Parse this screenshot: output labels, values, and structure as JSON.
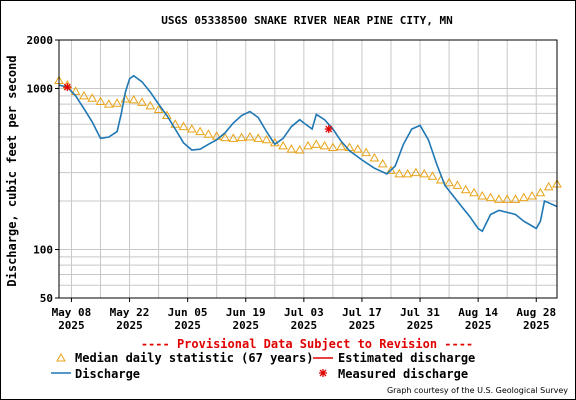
{
  "chart_data": {
    "type": "line",
    "title": "USGS 05338500 SNAKE RIVER NEAR PINE CITY, MN",
    "ylabel": "Discharge, cubic feet per second",
    "xlabel": "",
    "yscale": "log",
    "ylim": [
      50,
      2000
    ],
    "y_ticks": [
      {
        "value": 2000,
        "label": "2000"
      },
      {
        "value": 1000,
        "label": "1000"
      },
      {
        "value": 100,
        "label": "100"
      },
      {
        "value": 50,
        "label": "50"
      }
    ],
    "x_range": [
      "2025-05-05",
      "2025-09-02"
    ],
    "x_ticks": [
      {
        "date": "2025-05-08",
        "line1": "May 08",
        "line2": "2025"
      },
      {
        "date": "2025-05-22",
        "line1": "May 22",
        "line2": "2025"
      },
      {
        "date": "2025-06-05",
        "line1": "Jun 05",
        "line2": "2025"
      },
      {
        "date": "2025-06-19",
        "line1": "Jun 19",
        "line2": "2025"
      },
      {
        "date": "2025-07-03",
        "line1": "Jul 03",
        "line2": "2025"
      },
      {
        "date": "2025-07-17",
        "line1": "Jul 17",
        "line2": "2025"
      },
      {
        "date": "2025-07-31",
        "line1": "Jul 31",
        "line2": "2025"
      },
      {
        "date": "2025-08-14",
        "line1": "Aug 14",
        "line2": "2025"
      },
      {
        "date": "2025-08-28",
        "line1": "Aug 28",
        "line2": "2025"
      }
    ],
    "grid": true,
    "series": [
      {
        "name": "Discharge",
        "color": "#1f77b4",
        "style": "line",
        "points": [
          [
            "2025-05-05",
            1050
          ],
          [
            "2025-05-07",
            1020
          ],
          [
            "2025-05-09",
            900
          ],
          [
            "2025-05-11",
            750
          ],
          [
            "2025-05-13",
            620
          ],
          [
            "2025-05-15",
            490
          ],
          [
            "2025-05-17",
            500
          ],
          [
            "2025-05-19",
            540
          ],
          [
            "2025-05-20",
            700
          ],
          [
            "2025-05-21",
            950
          ],
          [
            "2025-05-22",
            1150
          ],
          [
            "2025-05-23",
            1200
          ],
          [
            "2025-05-25",
            1100
          ],
          [
            "2025-05-27",
            950
          ],
          [
            "2025-05-29",
            800
          ],
          [
            "2025-05-31",
            680
          ],
          [
            "2025-06-02",
            560
          ],
          [
            "2025-06-04",
            460
          ],
          [
            "2025-06-06",
            415
          ],
          [
            "2025-06-08",
            420
          ],
          [
            "2025-06-10",
            450
          ],
          [
            "2025-06-12",
            480
          ],
          [
            "2025-06-14",
            530
          ],
          [
            "2025-06-16",
            610
          ],
          [
            "2025-06-18",
            680
          ],
          [
            "2025-06-20",
            720
          ],
          [
            "2025-06-22",
            660
          ],
          [
            "2025-06-24",
            540
          ],
          [
            "2025-06-26",
            450
          ],
          [
            "2025-06-28",
            490
          ],
          [
            "2025-06-30",
            580
          ],
          [
            "2025-07-02",
            640
          ],
          [
            "2025-07-03",
            610
          ],
          [
            "2025-07-05",
            560
          ],
          [
            "2025-07-06",
            690
          ],
          [
            "2025-07-08",
            640
          ],
          [
            "2025-07-10",
            560
          ],
          [
            "2025-07-12",
            470
          ],
          [
            "2025-07-14",
            410
          ],
          [
            "2025-07-17",
            360
          ],
          [
            "2025-07-20",
            320
          ],
          [
            "2025-07-23",
            295
          ],
          [
            "2025-07-25",
            330
          ],
          [
            "2025-07-27",
            450
          ],
          [
            "2025-07-29",
            560
          ],
          [
            "2025-07-31",
            590
          ],
          [
            "2025-08-02",
            480
          ],
          [
            "2025-08-04",
            340
          ],
          [
            "2025-08-06",
            250
          ],
          [
            "2025-08-08",
            215
          ],
          [
            "2025-08-10",
            185
          ],
          [
            "2025-08-12",
            160
          ],
          [
            "2025-08-14",
            135
          ],
          [
            "2025-08-15",
            130
          ],
          [
            "2025-08-17",
            165
          ],
          [
            "2025-08-19",
            175
          ],
          [
            "2025-08-21",
            170
          ],
          [
            "2025-08-23",
            165
          ],
          [
            "2025-08-25",
            150
          ],
          [
            "2025-08-27",
            140
          ],
          [
            "2025-08-28",
            135
          ],
          [
            "2025-08-29",
            150
          ],
          [
            "2025-08-30",
            200
          ],
          [
            "2025-08-31",
            195
          ],
          [
            "2025-09-02",
            185
          ]
        ]
      },
      {
        "name": "Median daily statistic (67 years)",
        "color": "#e8a317",
        "style": "triangle",
        "points": [
          [
            "2025-05-05",
            1120
          ],
          [
            "2025-05-07",
            1050
          ],
          [
            "2025-05-09",
            960
          ],
          [
            "2025-05-11",
            900
          ],
          [
            "2025-05-13",
            870
          ],
          [
            "2025-05-15",
            830
          ],
          [
            "2025-05-17",
            800
          ],
          [
            "2025-05-19",
            810
          ],
          [
            "2025-05-21",
            860
          ],
          [
            "2025-05-23",
            850
          ],
          [
            "2025-05-25",
            820
          ],
          [
            "2025-05-27",
            780
          ],
          [
            "2025-05-29",
            740
          ],
          [
            "2025-05-31",
            680
          ],
          [
            "2025-06-02",
            600
          ],
          [
            "2025-06-04",
            580
          ],
          [
            "2025-06-06",
            560
          ],
          [
            "2025-06-08",
            540
          ],
          [
            "2025-06-10",
            520
          ],
          [
            "2025-06-12",
            505
          ],
          [
            "2025-06-14",
            495
          ],
          [
            "2025-06-16",
            490
          ],
          [
            "2025-06-18",
            495
          ],
          [
            "2025-06-20",
            500
          ],
          [
            "2025-06-22",
            490
          ],
          [
            "2025-06-24",
            480
          ],
          [
            "2025-06-26",
            460
          ],
          [
            "2025-06-28",
            440
          ],
          [
            "2025-06-30",
            420
          ],
          [
            "2025-07-02",
            415
          ],
          [
            "2025-07-04",
            440
          ],
          [
            "2025-07-06",
            450
          ],
          [
            "2025-07-08",
            440
          ],
          [
            "2025-07-10",
            430
          ],
          [
            "2025-07-12",
            435
          ],
          [
            "2025-07-14",
            430
          ],
          [
            "2025-07-16",
            420
          ],
          [
            "2025-07-18",
            400
          ],
          [
            "2025-07-20",
            370
          ],
          [
            "2025-07-22",
            340
          ],
          [
            "2025-07-24",
            310
          ],
          [
            "2025-07-26",
            295
          ],
          [
            "2025-07-28",
            295
          ],
          [
            "2025-07-30",
            300
          ],
          [
            "2025-08-01",
            295
          ],
          [
            "2025-08-03",
            285
          ],
          [
            "2025-08-05",
            270
          ],
          [
            "2025-08-07",
            260
          ],
          [
            "2025-08-09",
            250
          ],
          [
            "2025-08-11",
            235
          ],
          [
            "2025-08-13",
            225
          ],
          [
            "2025-08-15",
            215
          ],
          [
            "2025-08-17",
            210
          ],
          [
            "2025-08-19",
            205
          ],
          [
            "2025-08-21",
            205
          ],
          [
            "2025-08-23",
            205
          ],
          [
            "2025-08-25",
            210
          ],
          [
            "2025-08-27",
            215
          ],
          [
            "2025-08-29",
            225
          ],
          [
            "2025-08-31",
            245
          ],
          [
            "2025-09-02",
            255
          ]
        ]
      },
      {
        "name": "Measured discharge",
        "color": "#e00000",
        "style": "asterisk",
        "points": [
          [
            "2025-05-07",
            1020
          ],
          [
            "2025-07-09",
            560
          ]
        ]
      },
      {
        "name": "Estimated discharge",
        "color": "#e00000",
        "style": "line",
        "points": []
      }
    ],
    "legend": {
      "placement": "bottom",
      "entries": [
        {
          "label": "Median daily statistic (67 years)",
          "marker": "triangle",
          "color": "#e8a317"
        },
        {
          "label": "Estimated discharge",
          "marker": "line",
          "color": "#e00000"
        },
        {
          "label": "Discharge",
          "marker": "line",
          "color": "#1f77b4"
        },
        {
          "label": "Measured discharge",
          "marker": "asterisk",
          "color": "#e00000"
        }
      ]
    },
    "annotations": {
      "provisional": "---- Provisional Data Subject to Revision ----",
      "credit": "Graph courtesy of the U.S. Geological Survey"
    }
  }
}
